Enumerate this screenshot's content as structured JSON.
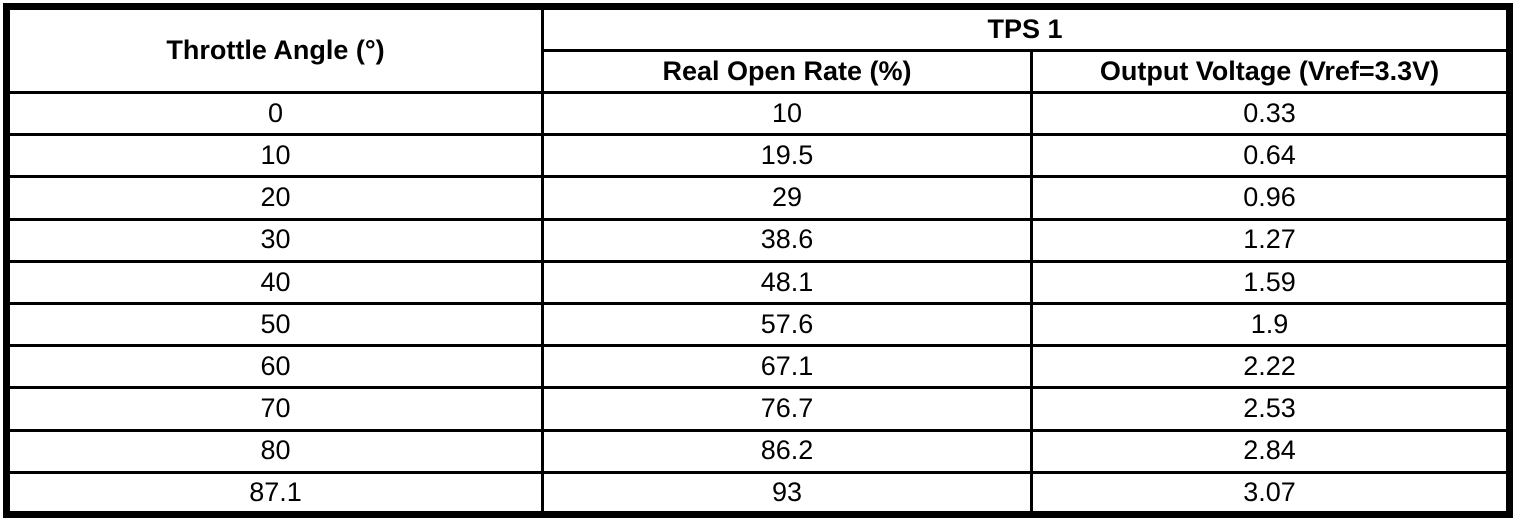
{
  "colors": {
    "border": "#000000",
    "background": "#ffffff"
  },
  "chart_data": {
    "type": "table",
    "title": "TPS 1",
    "columns": [
      "Throttle Angle (°)",
      "Real Open Rate (%)",
      "Output Voltage (Vref=3.3V)"
    ],
    "rows": [
      [
        "0",
        "10",
        "0.33"
      ],
      [
        "10",
        "19.5",
        "0.64"
      ],
      [
        "20",
        "29",
        "0.96"
      ],
      [
        "30",
        "38.6",
        "1.27"
      ],
      [
        "40",
        "48.1",
        "1.59"
      ],
      [
        "50",
        "57.6",
        "1.9"
      ],
      [
        "60",
        "67.1",
        "2.22"
      ],
      [
        "70",
        "76.7",
        "2.53"
      ],
      [
        "80",
        "86.2",
        "2.84"
      ],
      [
        "87.1",
        "93",
        "3.07"
      ]
    ]
  },
  "table": {
    "col1_header": "Throttle Angle (°)",
    "group_header": "TPS 1",
    "col2_header": "Real Open Rate (%)",
    "col3_header": "Output Voltage (Vref=3.3V)"
  }
}
